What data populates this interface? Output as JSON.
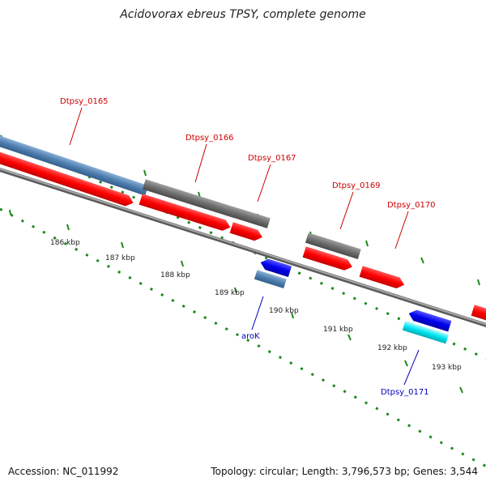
{
  "title": "Acidovorax ebreus TPSY, complete genome",
  "footer": {
    "accession": "Accession: NC_011992",
    "summary": "Topology: circular; Length: 3,796,573 bp; Genes: 3,544"
  },
  "colors": {
    "cds_forward": "#ff0000",
    "cds_reverse": "#0000ee",
    "gene_blue": "#4f7fb0",
    "gene_gray": "#707070",
    "gene_cyan": "#00e5f0",
    "backbone": "#8a8a8a",
    "ticks": "#1a8a1a",
    "label_forward": "#cc0000",
    "label_reverse": "#0000bb"
  },
  "kbp_labels": [
    "186 kbp",
    "187 kbp",
    "188 kbp",
    "189 kbp",
    "190 kbp",
    "191 kbp",
    "192 kbp",
    "193 kbp"
  ],
  "gene_labels": {
    "forward": [
      "Dtpsy_0165",
      "Dtpsy_0166",
      "Dtpsy_0167",
      "Dtpsy_0169",
      "Dtpsy_0170"
    ],
    "reverse": [
      "aroK",
      "Dtpsy_0171"
    ]
  }
}
